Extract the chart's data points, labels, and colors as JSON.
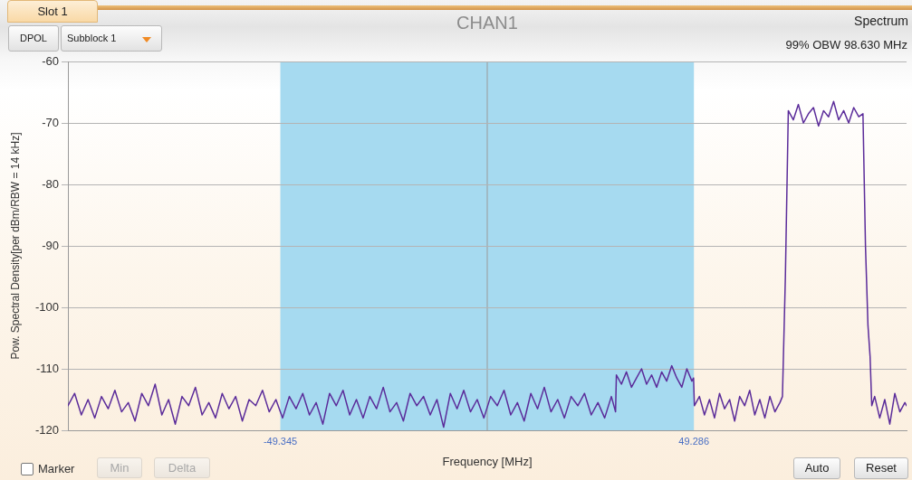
{
  "chart_data": {
    "type": "line",
    "title": "CHAN1",
    "subtitle": "Spectrum",
    "xlabel": "Frequency [MHz]",
    "ylabel": "Pow. Spectral Density[per dBm/RBW = 14 kHz]",
    "annotations": [
      "Slot 1",
      "DPOL",
      "Subblock 1",
      "99% OBW 98.630 MHz",
      "Marker",
      "Min",
      "Delta",
      "Auto",
      "Reset"
    ],
    "series": [
      {
        "color": "#5b2c9a",
        "x": [
          -100,
          -98.4,
          -96.8,
          -95.2,
          -93.6,
          -92,
          -90.4,
          -88.8,
          -87.2,
          -85.6,
          -84,
          -82.4,
          -80.8,
          -79.2,
          -77.6,
          -76,
          -74.4,
          -72.8,
          -71.2,
          -69.6,
          -68,
          -66.4,
          -64.8,
          -63.2,
          -61.6,
          -60,
          -58.4,
          -56.8,
          -55.2,
          -53.6,
          -52,
          -50.4,
          -48.8,
          -47.2,
          -45.6,
          -44,
          -42.4,
          -40.8,
          -39.2,
          -37.6,
          -36,
          -34.4,
          -32.8,
          -31.2,
          -29.6,
          -28,
          -26.4,
          -24.8,
          -23.2,
          -21.6,
          -20,
          -18.4,
          -16.8,
          -15.2,
          -13.6,
          -12,
          -10.4,
          -8.8,
          -7.2,
          -5.6,
          -4,
          -2.4,
          -0.8,
          0.8,
          2.4,
          4,
          5.6,
          7.2,
          8.8,
          10.4,
          12,
          13.6,
          15.2,
          16.8,
          18.4,
          20,
          21.6,
          23.2,
          24.8,
          26.4,
          28,
          29.6,
          30.6,
          30.8,
          32,
          33.2,
          34.4,
          35.6,
          36.8,
          38,
          39.2,
          40.4,
          41.6,
          42.8,
          44,
          45.2,
          46.4,
          47.6,
          48.8,
          49.2,
          49.4,
          50.6,
          51.8,
          53,
          54.2,
          55.4,
          56.6,
          57.8,
          59,
          60.2,
          61.4,
          62.6,
          63.8,
          65,
          66.2,
          67.4,
          68.6,
          69.8,
          70.4,
          71.1,
          71.8,
          73,
          74.2,
          75.4,
          76.6,
          77.8,
          79,
          80.2,
          81.4,
          82.6,
          83.8,
          85,
          86.2,
          87.4,
          88.6,
          89.6,
          90.2,
          90.8,
          91.3,
          91.7,
          92.4,
          93.6,
          94.8,
          96,
          97.2,
          98.4,
          99.6,
          100
        ],
        "values": [
          -116,
          -114,
          -117.5,
          -115,
          -118,
          -114.5,
          -116.5,
          -113.5,
          -117,
          -115.5,
          -118.5,
          -114,
          -116,
          -112.5,
          -117.5,
          -115,
          -119,
          -114.5,
          -116,
          -113,
          -117.5,
          -115.5,
          -118,
          -114,
          -116.5,
          -114.5,
          -118.5,
          -115,
          -116,
          -113.5,
          -117,
          -115,
          -118,
          -114.5,
          -116.5,
          -114,
          -117.5,
          -115.5,
          -119,
          -114,
          -116,
          -113.5,
          -117.5,
          -115,
          -118,
          -114.5,
          -116.5,
          -113,
          -117,
          -115.5,
          -118.5,
          -114,
          -116,
          -114.5,
          -117.5,
          -115,
          -119.5,
          -114,
          -116.5,
          -113.5,
          -117,
          -115,
          -118,
          -114.5,
          -116,
          -113.5,
          -117.5,
          -115.5,
          -118.5,
          -114,
          -116.5,
          -113,
          -117,
          -115,
          -118,
          -114.5,
          -116,
          -114,
          -117.5,
          -115.5,
          -118,
          -114.5,
          -117,
          -111,
          -112.5,
          -110.5,
          -113,
          -111.5,
          -110,
          -112.5,
          -111,
          -113,
          -110.5,
          -112,
          -109.5,
          -111.5,
          -113,
          -110,
          -112,
          -111.5,
          -116,
          -114.5,
          -117.5,
          -115,
          -118,
          -114,
          -116.5,
          -115,
          -118.5,
          -114.5,
          -116,
          -113.5,
          -117.5,
          -115,
          -118,
          -114.5,
          -117,
          -115.5,
          -114.5,
          -95,
          -68,
          -69.5,
          -67,
          -70,
          -68.5,
          -67.5,
          -70.5,
          -68,
          -69,
          -66.5,
          -69.5,
          -68,
          -70,
          -67.5,
          -69,
          -68.5,
          -90,
          -103,
          -108,
          -116,
          -114.5,
          -118,
          -115,
          -119,
          -114,
          -117,
          -115.5,
          -116
        ]
      }
    ],
    "xlim": [
      -100,
      100
    ],
    "xticks": [
      -49.345,
      49.286
    ],
    "ylim": [
      -120,
      -60
    ],
    "yticks": [
      -120,
      -110,
      -100,
      -90,
      -80,
      -70,
      -60
    ],
    "bands": [
      {
        "axis": "x",
        "from": -49.345,
        "to": 49.286,
        "color": "#a6daf0"
      }
    ],
    "ref_lines": [
      {
        "axis": "x",
        "value": 0,
        "color": "#9a9a9a"
      }
    ],
    "grid": "y",
    "marker": "none"
  }
}
